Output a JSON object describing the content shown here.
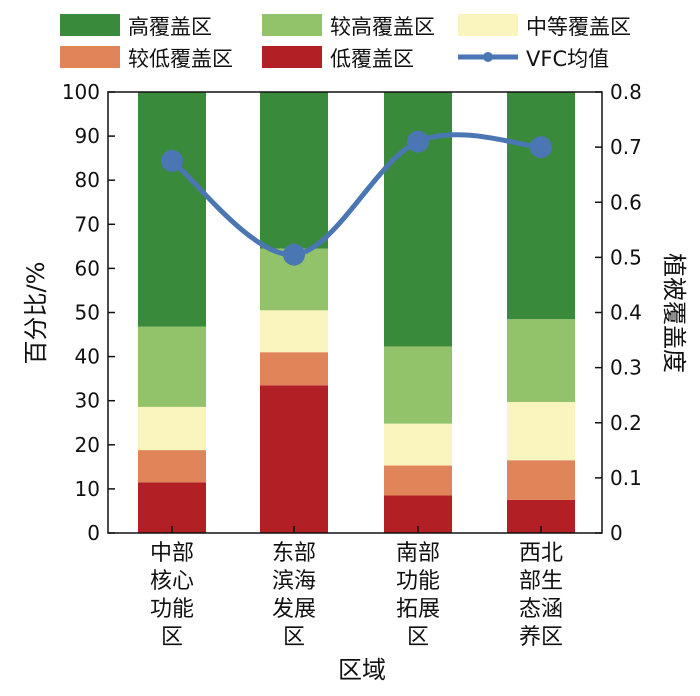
{
  "chart_data": {
    "type": "bar",
    "stacked": true,
    "xlabel": "区域",
    "ylabel": "百分比/%",
    "y2label": "植被覆盖度",
    "ylim": [
      0,
      100
    ],
    "y2lim": [
      0,
      0.8
    ],
    "yticks": [
      0,
      10,
      20,
      30,
      40,
      50,
      60,
      70,
      80,
      90,
      100
    ],
    "y2ticks": [
      "0",
      "0.1",
      "0.2",
      "0.3",
      "0.4",
      "0.5",
      "0.6",
      "0.7",
      "0.8"
    ],
    "legend_position": "top",
    "categories": [
      [
        "中部",
        "核心",
        "功能",
        "区"
      ],
      [
        "东部",
        "滨海",
        "发展",
        "区"
      ],
      [
        "南部",
        "功能",
        "拓展",
        "区"
      ],
      [
        "西北",
        "部生",
        "态涵",
        "养区"
      ]
    ],
    "series": [
      {
        "name": "低覆盖区",
        "color": "#b21f24",
        "values": [
          11.5,
          33.5,
          8.5,
          7.5
        ]
      },
      {
        "name": "较低覆盖区",
        "color": "#e0855a",
        "values": [
          7.3,
          7.5,
          6.8,
          9.0
        ]
      },
      {
        "name": "中等覆盖区",
        "color": "#faf5be",
        "values": [
          9.8,
          9.5,
          9.5,
          13.2
        ]
      },
      {
        "name": "较高覆盖区",
        "color": "#92c26a",
        "values": [
          18.2,
          14.0,
          17.5,
          18.8
        ]
      },
      {
        "name": "高覆盖区",
        "color": "#3a8a3c",
        "values": [
          53.2,
          35.5,
          57.7,
          51.5
        ]
      }
    ],
    "line": {
      "name": "VFC均值",
      "color": "#4a76b4",
      "axis": "right",
      "values": [
        0.675,
        0.505,
        0.71,
        0.7
      ]
    }
  }
}
